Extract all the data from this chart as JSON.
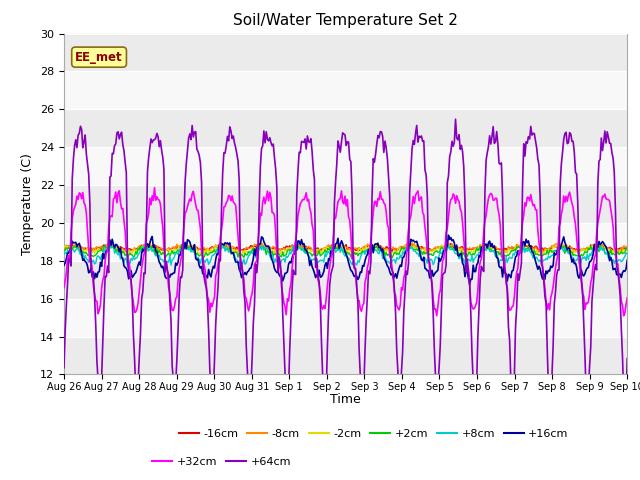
{
  "title": "Soil/Water Temperature Set 2",
  "xlabel": "Time",
  "ylabel": "Temperature (C)",
  "ylim": [
    12,
    30
  ],
  "yticks": [
    12,
    14,
    16,
    18,
    20,
    22,
    24,
    26,
    28,
    30
  ],
  "annotation_text": "EE_met",
  "bg_color": "#ffffff",
  "plot_bg_light": "#f0f0f0",
  "plot_bg_dark": "#e0e0e0",
  "legend_entries": [
    "-16cm",
    "-8cm",
    "-2cm",
    "+2cm",
    "+8cm",
    "+16cm",
    "+32cm",
    "+64cm"
  ],
  "legend_colors": [
    "#dd0000",
    "#ff8800",
    "#dddd00",
    "#00cc00",
    "#00cccc",
    "#000099",
    "#ff00ff",
    "#8800bb"
  ],
  "line_widths": [
    1.0,
    1.0,
    1.0,
    1.0,
    1.0,
    1.2,
    1.2,
    1.2
  ],
  "xtick_labels": [
    "Aug 26",
    "Aug 27",
    "Aug 28",
    "Aug 29",
    "Aug 30",
    "Aug 31",
    "Sep 1",
    "Sep 2",
    "Sep 3",
    "Sep 4",
    "Sep 5",
    "Sep 6",
    "Sep 7",
    "Sep 8",
    "Sep 9",
    "Sep 10"
  ],
  "xtick_positions": [
    0,
    30,
    60,
    90,
    120,
    150,
    180,
    210,
    240,
    270,
    300,
    330,
    360,
    390,
    420,
    450
  ]
}
